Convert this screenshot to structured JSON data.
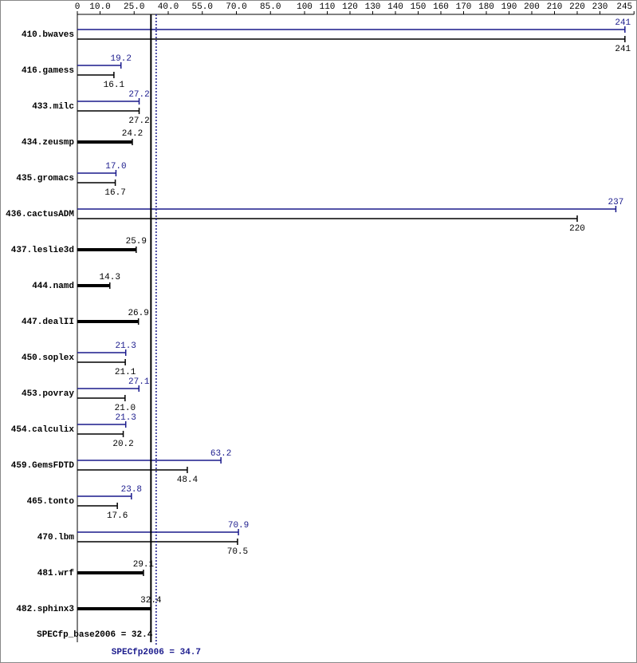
{
  "chart_data": {
    "type": "spec-bar",
    "categories": [
      "410.bwaves",
      "416.gamess",
      "433.milc",
      "434.zeusmp",
      "435.gromacs",
      "436.cactusADM",
      "437.leslie3d",
      "444.namd",
      "447.dealII",
      "450.soplex",
      "453.povray",
      "454.calculix",
      "459.GemsFDTD",
      "465.tonto",
      "470.lbm",
      "481.wrf",
      "482.sphinx3"
    ],
    "series": [
      {
        "color": "#1a1a8c",
        "values": [
          241,
          19.2,
          27.2,
          null,
          17.0,
          237,
          null,
          null,
          null,
          21.3,
          27.1,
          21.3,
          63.2,
          23.8,
          70.9,
          null,
          null
        ],
        "value_labels": [
          "241",
          "19.2",
          "27.2",
          null,
          "17.0",
          "237",
          null,
          null,
          null,
          "21.3",
          "27.1",
          "21.3",
          "63.2",
          "23.8",
          "70.9",
          null,
          null
        ]
      },
      {
        "color": "#000000",
        "values": [
          241,
          16.1,
          27.2,
          24.2,
          16.7,
          220,
          25.9,
          14.3,
          26.9,
          21.1,
          21.0,
          20.2,
          48.4,
          17.6,
          70.5,
          29.1,
          32.4
        ],
        "value_labels": [
          "241",
          "16.1",
          "27.2",
          "24.2",
          "16.7",
          "220",
          "25.9",
          "14.3",
          "26.9",
          "21.1",
          "21.0",
          "20.2",
          "48.4",
          "17.6",
          "70.5",
          "29.1",
          "32.4"
        ]
      }
    ],
    "xlim": [
      0,
      245
    ],
    "xticks": [
      0,
      {
        "value": 10,
        "label": "10.0"
      },
      {
        "value": 25,
        "label": "25.0"
      },
      {
        "value": 40,
        "label": "40.0"
      },
      {
        "value": 55,
        "label": "55.0"
      },
      {
        "value": 70,
        "label": "70.0"
      },
      {
        "value": 85,
        "label": "85.0"
      },
      100,
      110,
      120,
      130,
      140,
      150,
      160,
      170,
      180,
      190,
      200,
      210,
      220,
      230,
      245
    ],
    "base_line": {
      "value": 32.4,
      "label": "SPECfp_base2006 = 32.4",
      "color": "#000000"
    },
    "peak_line": {
      "value": 34.7,
      "label": "SPECfp2006 = 34.7",
      "color": "#1a1a8c"
    }
  }
}
